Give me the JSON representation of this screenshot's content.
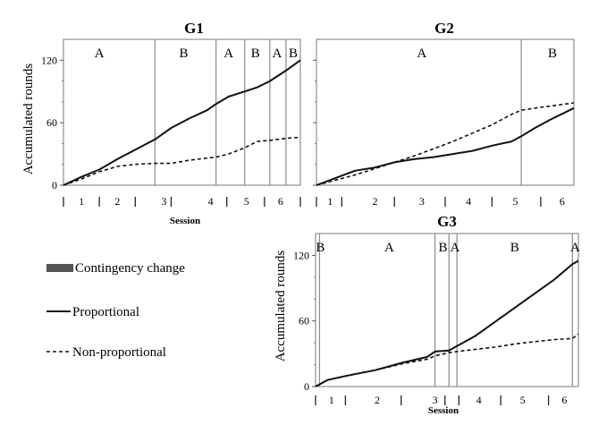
{
  "legend": [
    {
      "key": "contingency",
      "label": "Contingency change",
      "style": "bar"
    },
    {
      "key": "proportional",
      "label": "Proportional",
      "style": "solid"
    },
    {
      "key": "nonproportional",
      "label": "Non-proportional",
      "style": "dashed"
    }
  ],
  "colors": {
    "proportional": "#111111",
    "nonproportional": "#111111",
    "phase_line": "#8a8a8a",
    "frame": "#7a7a7a",
    "contingency_bar": "#555555"
  },
  "chart_data": [
    {
      "type": "line",
      "title": "G1",
      "ylabel": "Accumulated rounds",
      "xlabel": "Session",
      "xlim": [
        0,
        6.6
      ],
      "ylim": [
        0,
        140
      ],
      "yticks": [
        0,
        60,
        120
      ],
      "session_labels": [
        "1",
        "2",
        "3",
        "4",
        "5",
        "6"
      ],
      "session_label_x": [
        0.5,
        1.5,
        2.8,
        4.1,
        5.1,
        6.05
      ],
      "session_boundaries": [
        0,
        1,
        2,
        3,
        4.55,
        5.6,
        6.6
      ],
      "phase_changes": [
        2.55,
        4.25,
        5.05,
        5.75,
        6.2
      ],
      "phases": [
        {
          "label": "A",
          "x": 1.0
        },
        {
          "label": "B",
          "x": 3.35
        },
        {
          "label": "A",
          "x": 4.6
        },
        {
          "label": "B",
          "x": 5.35
        },
        {
          "label": "A",
          "x": 5.95
        },
        {
          "label": "B",
          "x": 6.4
        }
      ],
      "series": [
        {
          "name": "Proportional",
          "key": "proportional",
          "dash": false,
          "x": [
            0,
            0.5,
            1.0,
            1.5,
            2.0,
            2.55,
            3.0,
            3.5,
            4.0,
            4.25,
            4.6,
            5.05,
            5.4,
            5.75,
            6.2,
            6.6
          ],
          "y": [
            0,
            8,
            15,
            25,
            34,
            44,
            55,
            64,
            72,
            78,
            85,
            90,
            94,
            100,
            110,
            120
          ]
        },
        {
          "name": "Non-proportional",
          "key": "nonproportional",
          "dash": true,
          "x": [
            0,
            0.5,
            1.0,
            1.5,
            2.0,
            2.55,
            3.0,
            3.5,
            4.0,
            4.25,
            4.6,
            5.05,
            5.4,
            5.75,
            6.2,
            6.6
          ],
          "y": [
            0,
            6,
            13,
            18,
            20,
            21,
            21,
            24,
            26,
            27,
            30,
            36,
            42,
            43,
            45,
            46
          ]
        }
      ]
    },
    {
      "type": "line",
      "title": "G2",
      "ylabel": "",
      "xlabel": "",
      "xlim": [
        0,
        6.6
      ],
      "ylim": [
        0,
        140
      ],
      "yticks": [
        0,
        60,
        120
      ],
      "session_labels": [
        "1",
        "2",
        "3",
        "4",
        "5",
        "6"
      ],
      "session_label_x": [
        0.35,
        1.5,
        2.7,
        3.9,
        5.1,
        6.3
      ],
      "session_boundaries": [
        0,
        0.65,
        2.0,
        3.3,
        4.5,
        5.75
      ],
      "phase_changes": [
        5.25
      ],
      "phases": [
        {
          "label": "A",
          "x": 2.7
        },
        {
          "label": "B",
          "x": 6.05
        }
      ],
      "series": [
        {
          "name": "Proportional",
          "key": "proportional",
          "dash": false,
          "x": [
            0,
            0.5,
            1.0,
            1.5,
            2.0,
            2.5,
            3.0,
            3.5,
            4.0,
            4.5,
            5.0,
            5.25,
            5.6,
            6.0,
            6.6
          ],
          "y": [
            0,
            7,
            14,
            17,
            22,
            25,
            27,
            30,
            33,
            38,
            42,
            47,
            55,
            63,
            74
          ]
        },
        {
          "name": "Non-proportional",
          "key": "nonproportional",
          "dash": true,
          "x": [
            0,
            0.5,
            1.0,
            1.5,
            2.0,
            2.5,
            3.0,
            3.5,
            4.0,
            4.5,
            5.0,
            5.25,
            5.6,
            6.0,
            6.6
          ],
          "y": [
            0,
            5,
            10,
            16,
            22,
            28,
            35,
            42,
            50,
            58,
            68,
            72,
            74,
            76,
            79
          ]
        }
      ]
    },
    {
      "type": "line",
      "title": "G3",
      "ylabel": "Accumulated rounds",
      "xlabel": "Session",
      "xlim": [
        0,
        6.6
      ],
      "ylim": [
        0,
        140
      ],
      "yticks": [
        0,
        60,
        120
      ],
      "session_labels": [
        "1",
        "2",
        "3",
        "4",
        "5",
        "6"
      ],
      "session_label_x": [
        0.4,
        1.55,
        3.0,
        4.1,
        5.2,
        6.25
      ],
      "session_boundaries": [
        0,
        0.75,
        2.15,
        3.25,
        3.6,
        4.65,
        5.85
      ],
      "phase_changes": [
        0.1,
        3.0,
        3.35,
        3.55,
        6.45
      ],
      "phases": [
        {
          "label": "B",
          "x": 0.12
        },
        {
          "label": "A",
          "x": 1.85
        },
        {
          "label": "B",
          "x": 3.2
        },
        {
          "label": "A",
          "x": 3.5
        },
        {
          "label": "B",
          "x": 5.0
        },
        {
          "label": "A",
          "x": 6.52
        }
      ],
      "series": [
        {
          "name": "Proportional",
          "key": "proportional",
          "dash": false,
          "x": [
            0,
            0.3,
            0.8,
            1.5,
            2.2,
            2.8,
            3.0,
            3.35,
            3.55,
            4.0,
            4.5,
            5.0,
            5.5,
            6.0,
            6.45,
            6.6
          ],
          "y": [
            0,
            6,
            10,
            15,
            22,
            27,
            32,
            33,
            37,
            46,
            59,
            72,
            85,
            98,
            112,
            115
          ]
        },
        {
          "name": "Non-proportional",
          "key": "nonproportional",
          "dash": true,
          "x": [
            0,
            0.3,
            0.8,
            1.5,
            2.2,
            2.8,
            3.0,
            3.35,
            3.55,
            4.0,
            4.5,
            5.0,
            5.5,
            6.0,
            6.45,
            6.6
          ],
          "y": [
            0,
            6,
            10,
            15,
            21,
            25,
            28,
            31,
            32,
            34,
            36,
            39,
            41,
            43,
            44,
            48
          ]
        }
      ]
    }
  ]
}
